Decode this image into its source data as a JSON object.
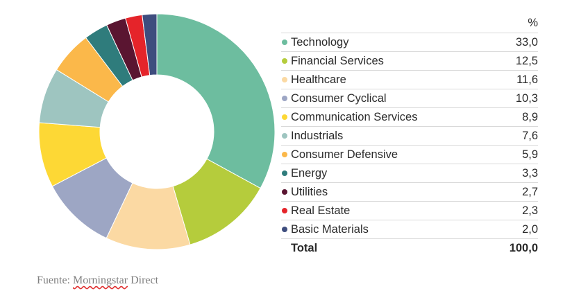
{
  "chart_data": {
    "type": "pie",
    "style": "donut",
    "unit_header": "%",
    "categories": [
      "Technology",
      "Financial Services",
      "Healthcare",
      "Consumer Cyclical",
      "Communication Services",
      "Industrials",
      "Consumer Defensive",
      "Energy",
      "Utilities",
      "Real Estate",
      "Basic Materials"
    ],
    "values": [
      33.0,
      12.5,
      11.6,
      10.3,
      8.9,
      7.6,
      5.9,
      3.3,
      2.7,
      2.3,
      2.0
    ],
    "display_values": [
      "33,0",
      "12,5",
      "11,6",
      "10,3",
      "8,9",
      "7,6",
      "5,9",
      "3,3",
      "2,7",
      "2,3",
      "2,0"
    ],
    "colors": [
      "#6dbd9f",
      "#b5cc3c",
      "#fbd9a3",
      "#9da6c4",
      "#fdd835",
      "#9ec5c0",
      "#fbb84a",
      "#2f7c7c",
      "#5a1531",
      "#e5242a",
      "#3e4d7e"
    ],
    "total_label": "Total",
    "total_value": "100,0"
  },
  "source": {
    "prefix": "Fuente: ",
    "link": "Morningstar",
    "suffix": " Direct"
  }
}
